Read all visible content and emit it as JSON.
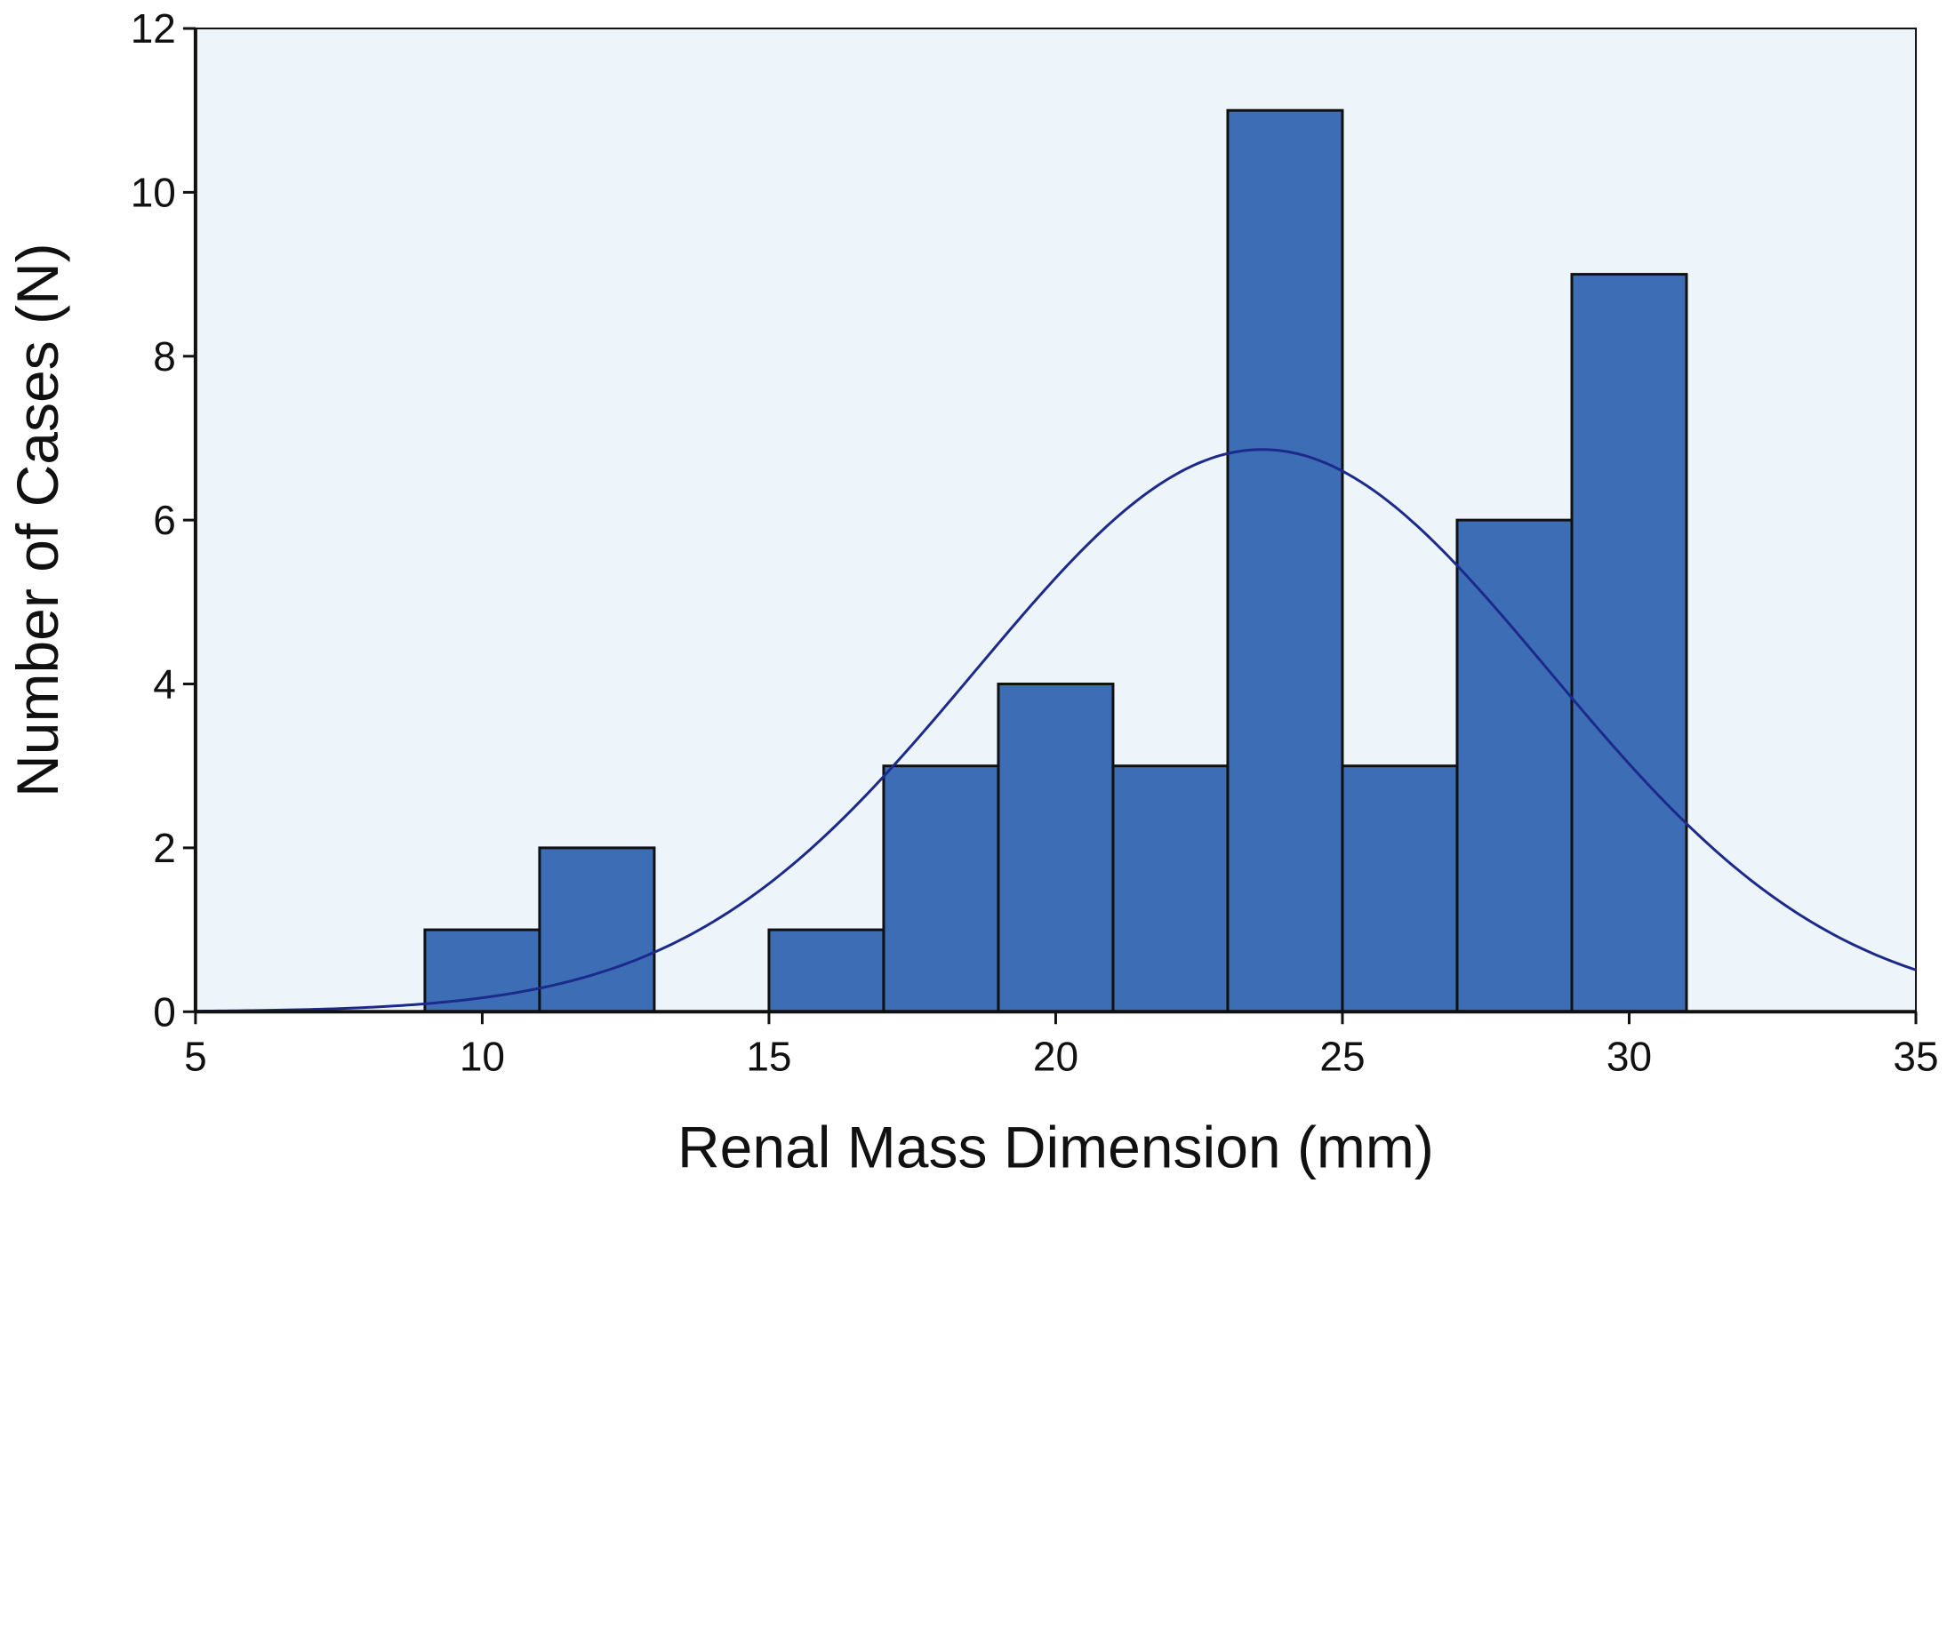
{
  "chart_data": {
    "type": "bar",
    "title": "",
    "xlabel": "Renal Mass Dimension (mm)",
    "ylabel": "Number of Cases (N)",
    "xlim": [
      5,
      35
    ],
    "ylim": [
      0,
      12
    ],
    "x_ticks": [
      5,
      10,
      15,
      20,
      25,
      30,
      35
    ],
    "y_ticks": [
      0,
      2,
      4,
      6,
      8,
      10,
      12
    ],
    "grid": false,
    "legend": "none",
    "bins": [
      {
        "start": 9,
        "end": 11,
        "count": 1
      },
      {
        "start": 11,
        "end": 13,
        "count": 2
      },
      {
        "start": 15,
        "end": 17,
        "count": 1
      },
      {
        "start": 17,
        "end": 19,
        "count": 3
      },
      {
        "start": 19,
        "end": 21,
        "count": 4
      },
      {
        "start": 21,
        "end": 23,
        "count": 3
      },
      {
        "start": 23,
        "end": 25,
        "count": 11
      },
      {
        "start": 25,
        "end": 27,
        "count": 3
      },
      {
        "start": 27,
        "end": 29,
        "count": 6
      },
      {
        "start": 29,
        "end": 31,
        "count": 9
      }
    ],
    "normal_curve": {
      "mean": 23.6,
      "std_dev": 5.0,
      "n": 43,
      "bin_width": 2
    },
    "colors": {
      "plot_background": "#eef5fa",
      "bar_fill": "#3d6db5",
      "bar_stroke": "#111111",
      "curve": "#1c2a8c",
      "axis": "#111111"
    }
  }
}
